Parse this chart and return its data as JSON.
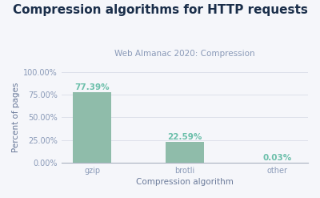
{
  "title": "Compression algorithms for HTTP requests",
  "subtitle": "Web Almanac 2020: Compression",
  "xlabel": "Compression algorithm",
  "ylabel": "Percent of pages",
  "categories": [
    "gzip",
    "brotli",
    "other"
  ],
  "values": [
    77.39,
    22.59,
    0.03
  ],
  "bar_color": "#8fbcaa",
  "label_color": "#6bbfaa",
  "title_color": "#1a2e4a",
  "subtitle_color": "#8a9ab8",
  "axis_label_color": "#6a7a9a",
  "tick_label_color": "#8a9ab8",
  "grid_color": "#dde0ea",
  "background_color": "#f5f6fa",
  "ylim": [
    0,
    100
  ],
  "yticks": [
    0,
    25,
    50,
    75,
    100
  ],
  "ytick_labels": [
    "0.00%",
    "25.00%",
    "50.00%",
    "75.00%",
    "100.00%"
  ],
  "title_fontsize": 11,
  "subtitle_fontsize": 7.5,
  "axis_label_fontsize": 7.5,
  "tick_fontsize": 7,
  "bar_label_fontsize": 7.5,
  "bar_width": 0.42
}
